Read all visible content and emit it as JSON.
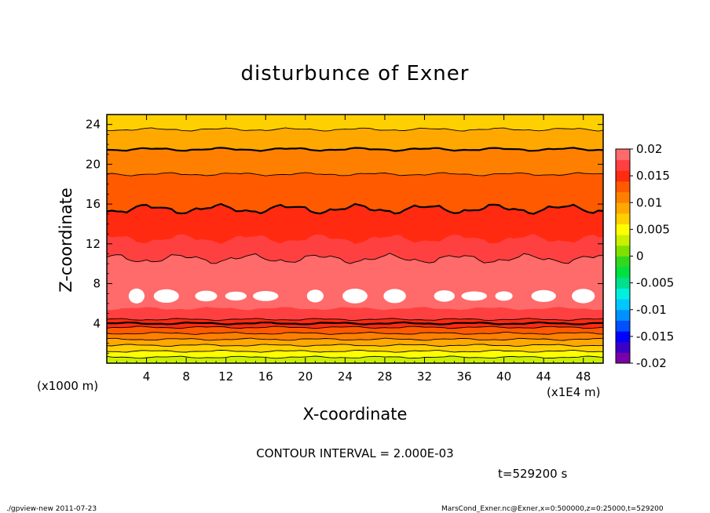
{
  "chart_data": {
    "type": "heatmap",
    "title": "disturbunce of Exner",
    "xlabel": "X-coordinate",
    "ylabel": "Z-coordinate",
    "x_unit_left": "(x1000 m)",
    "x_unit_right": "(x1E4 m)",
    "xlim": [
      0,
      50
    ],
    "ylim": [
      0,
      25
    ],
    "x_ticks": [
      4,
      8,
      12,
      16,
      20,
      24,
      28,
      32,
      36,
      40,
      44,
      48
    ],
    "y_ticks": [
      4,
      8,
      12,
      16,
      20,
      24
    ],
    "colorbar": {
      "labels": [
        "0.02",
        "0.015",
        "0.01",
        "0.005",
        "0",
        "-0.005",
        "-0.01",
        "-0.015",
        "-0.02"
      ],
      "levels": [
        -0.02,
        -0.018,
        -0.016,
        -0.014,
        -0.012,
        -0.01,
        -0.008,
        -0.006,
        -0.004,
        -0.002,
        0,
        0.002,
        0.004,
        0.006,
        0.008,
        0.01,
        0.012,
        0.014,
        0.016,
        0.018,
        0.02
      ],
      "colors": [
        "#7a00a8",
        "#3a00c8",
        "#0000ff",
        "#0050ff",
        "#0090ff",
        "#00c8ff",
        "#00f0e0",
        "#00e090",
        "#00e040",
        "#30d820",
        "#80e000",
        "#c8f000",
        "#ffff00",
        "#ffd000",
        "#ffa800",
        "#ff8000",
        "#ff5a00",
        "#ff2a10",
        "#ff4040",
        "#ff6a6a"
      ]
    },
    "field_layers": [
      {
        "z_top": 0.6,
        "value": 0.003
      },
      {
        "z_top": 1.2,
        "value": 0.005
      },
      {
        "z_top": 1.8,
        "value": 0.007
      },
      {
        "z_top": 2.4,
        "value": 0.009
      },
      {
        "z_top": 3.0,
        "value": 0.011
      },
      {
        "z_top": 3.6,
        "value": 0.013
      },
      {
        "z_top": 4.4,
        "value": 0.015
      },
      {
        "z_top": 5.5,
        "value": 0.017
      },
      {
        "z_top": 10.5,
        "value": 0.019
      },
      {
        "z_top": 12.5,
        "value": 0.017
      },
      {
        "z_top": 15.5,
        "value": 0.015
      },
      {
        "z_top": 19.0,
        "value": 0.013
      },
      {
        "z_top": 21.5,
        "value": 0.011
      },
      {
        "z_top": 23.5,
        "value": 0.009
      },
      {
        "z_top": 25.0,
        "value": 0.007
      }
    ],
    "contour_lines_z": [
      0.6,
      1.2,
      1.8,
      2.4,
      3.0,
      3.6,
      4.0,
      4.4,
      10.5,
      15.5,
      19.0,
      21.5,
      23.5
    ],
    "bold_contours_z": [
      4.0,
      15.5,
      21.5
    ],
    "max_region_centers_x": [
      3,
      6,
      10,
      13,
      16,
      21,
      25,
      29,
      34,
      37,
      40,
      44,
      48
    ],
    "max_region_z": [
      6,
      7.5
    ]
  },
  "annotations": {
    "contour_interval": "CONTOUR INTERVAL = 2.000E-03",
    "time": "t=529200 s",
    "footer_left": "./gpview-new   2011-07-23",
    "footer_right": "MarsCond_Exner.nc@Exner,x=0:500000,z=0:25000,t=529200"
  }
}
